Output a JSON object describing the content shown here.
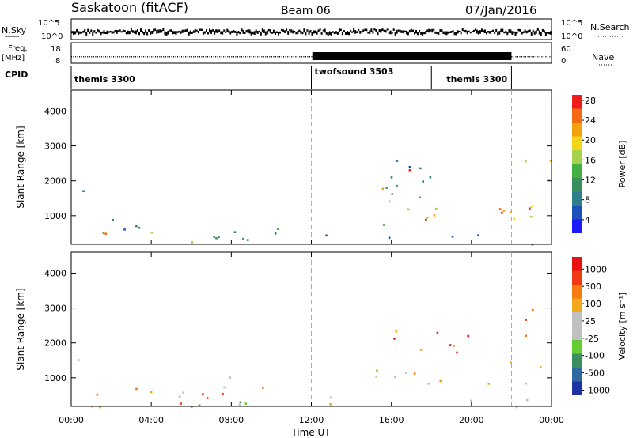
{
  "header": {
    "station": "Saskatoon (fitACF)",
    "beam": "Beam 06",
    "date": "07/Jan/2016"
  },
  "left_labels": {
    "nsky": "N.Sky",
    "freq_line1": "Freq.",
    "freq_line2": "[MHz]",
    "cpid": "CPID"
  },
  "right_labels": {
    "nsearch": "N.Search",
    "nave": "Nave"
  },
  "strip_ticks": {
    "noise_left": [
      "10^5",
      "10^0"
    ],
    "noise_right": [
      "10^5",
      "10^0"
    ],
    "freq_left": [
      "18",
      "8"
    ],
    "freq_right": [
      "60",
      "0"
    ]
  },
  "cpid_segments": [
    {
      "label": "themis 3300",
      "start_hr": 0,
      "end_hr": 12
    },
    {
      "label": "twofsound 3503",
      "start_hr": 12,
      "end_hr": 18
    },
    {
      "label": "themis 3300",
      "start_hr": 18,
      "end_hr": 22
    }
  ],
  "chart_data": [
    {
      "type": "heatmap",
      "xlabel": "",
      "ylabel": "Slant Range [km]",
      "xlim": [
        0,
        24
      ],
      "ylim": [
        180,
        4600
      ],
      "yticks": [
        "1000",
        "2000",
        "3000",
        "4000"
      ],
      "colorbar": {
        "label": "Power [dB]",
        "ticks": [
          "4",
          "8",
          "12",
          "16",
          "20",
          "24",
          "28"
        ],
        "colors": [
          "#1a1aff",
          "#1f4fb8",
          "#2e7f8a",
          "#3a8f5e",
          "#44b044",
          "#a6d14a",
          "#f2d71b",
          "#f5a10f",
          "#f36a15",
          "#ef1c1c"
        ]
      },
      "scatter_regions": [
        {
          "t_start": 0.0,
          "t_end": 11.5,
          "r_start": 180,
          "r_end": 700,
          "level": 0.35
        },
        {
          "t_start": 0.0,
          "t_end": 3.5,
          "r_start": 600,
          "r_end": 1100,
          "level": 0.25
        },
        {
          "t_start": 1.5,
          "t_end": 3.5,
          "r_start": 300,
          "r_end": 700,
          "level": 0.85
        },
        {
          "t_start": 6.0,
          "t_end": 9.0,
          "r_start": 300,
          "r_end": 900,
          "level": 0.3
        },
        {
          "t_start": 8.0,
          "t_end": 9.0,
          "r_start": 180,
          "r_end": 500,
          "level": 0.95
        },
        {
          "t_start": 0.0,
          "t_end": 0.6,
          "r_start": 1200,
          "r_end": 1900,
          "level": 0.2
        },
        {
          "t_start": 1.0,
          "t_end": 1.5,
          "r_start": 2500,
          "r_end": 2800,
          "level": 0.1
        },
        {
          "t_start": 14.8,
          "t_end": 24.0,
          "r_start": 700,
          "r_end": 1500,
          "level": 0.6
        },
        {
          "t_start": 16.0,
          "t_end": 23.5,
          "r_start": 900,
          "r_end": 1300,
          "level": 0.85
        },
        {
          "t_start": 15.5,
          "t_end": 17.5,
          "r_start": 1800,
          "r_end": 2500,
          "level": 0.8
        },
        {
          "t_start": 14.8,
          "t_end": 20.0,
          "r_start": 1500,
          "r_end": 2800,
          "level": 0.35
        },
        {
          "t_start": 22.5,
          "t_end": 24.0,
          "r_start": 1800,
          "r_end": 3300,
          "level": 0.7
        },
        {
          "t_start": 12.0,
          "t_end": 24.0,
          "r_start": 180,
          "r_end": 500,
          "level": 0.3
        }
      ]
    },
    {
      "type": "heatmap",
      "xlabel": "Time UT",
      "ylabel": "Slant Range [km]",
      "xlim": [
        0,
        24
      ],
      "ylim": [
        180,
        4600
      ],
      "xticks": [
        "00:00",
        "04:00",
        "08:00",
        "12:00",
        "16:00",
        "20:00",
        "00:00"
      ],
      "yticks": [
        "1000",
        "2000",
        "3000",
        "4000"
      ],
      "colorbar": {
        "label": "Velocity [m s⁻¹]",
        "ticks": [
          "1000",
          "500",
          "100",
          "25",
          "-25",
          "-100",
          "-500",
          "-1000"
        ],
        "colors": [
          "#1d33a3",
          "#2e6aa0",
          "#3a8f5e",
          "#66cc33",
          "#c0c0c0",
          "#c0c0c0",
          "#f2a81b",
          "#f57a10",
          "#ef3a14",
          "#e81010"
        ]
      },
      "scatter_regions": [
        {
          "t_start": 0.0,
          "t_end": 11.5,
          "r_start": 180,
          "r_end": 700,
          "level": 0.75
        },
        {
          "t_start": 1.0,
          "t_end": 4.0,
          "r_start": 200,
          "r_end": 800,
          "level": 0.8
        },
        {
          "t_start": 5.0,
          "t_end": 10.0,
          "r_start": 200,
          "r_end": 700,
          "level": 0.45
        },
        {
          "t_start": 7.0,
          "t_end": 10.0,
          "r_start": 500,
          "r_end": 1100,
          "level": 0.55
        },
        {
          "t_start": 0.0,
          "t_end": 0.8,
          "r_start": 1100,
          "r_end": 1900,
          "level": 0.55
        },
        {
          "t_start": 14.8,
          "t_end": 24.0,
          "r_start": 700,
          "r_end": 1500,
          "level": 0.55
        },
        {
          "t_start": 16.0,
          "t_end": 21.0,
          "r_start": 1500,
          "r_end": 2600,
          "level": 0.8
        },
        {
          "t_start": 22.5,
          "t_end": 24.0,
          "r_start": 2000,
          "r_end": 3300,
          "level": 0.85
        },
        {
          "t_start": 12.0,
          "t_end": 24.0,
          "r_start": 180,
          "r_end": 500,
          "level": 0.6
        }
      ]
    }
  ]
}
